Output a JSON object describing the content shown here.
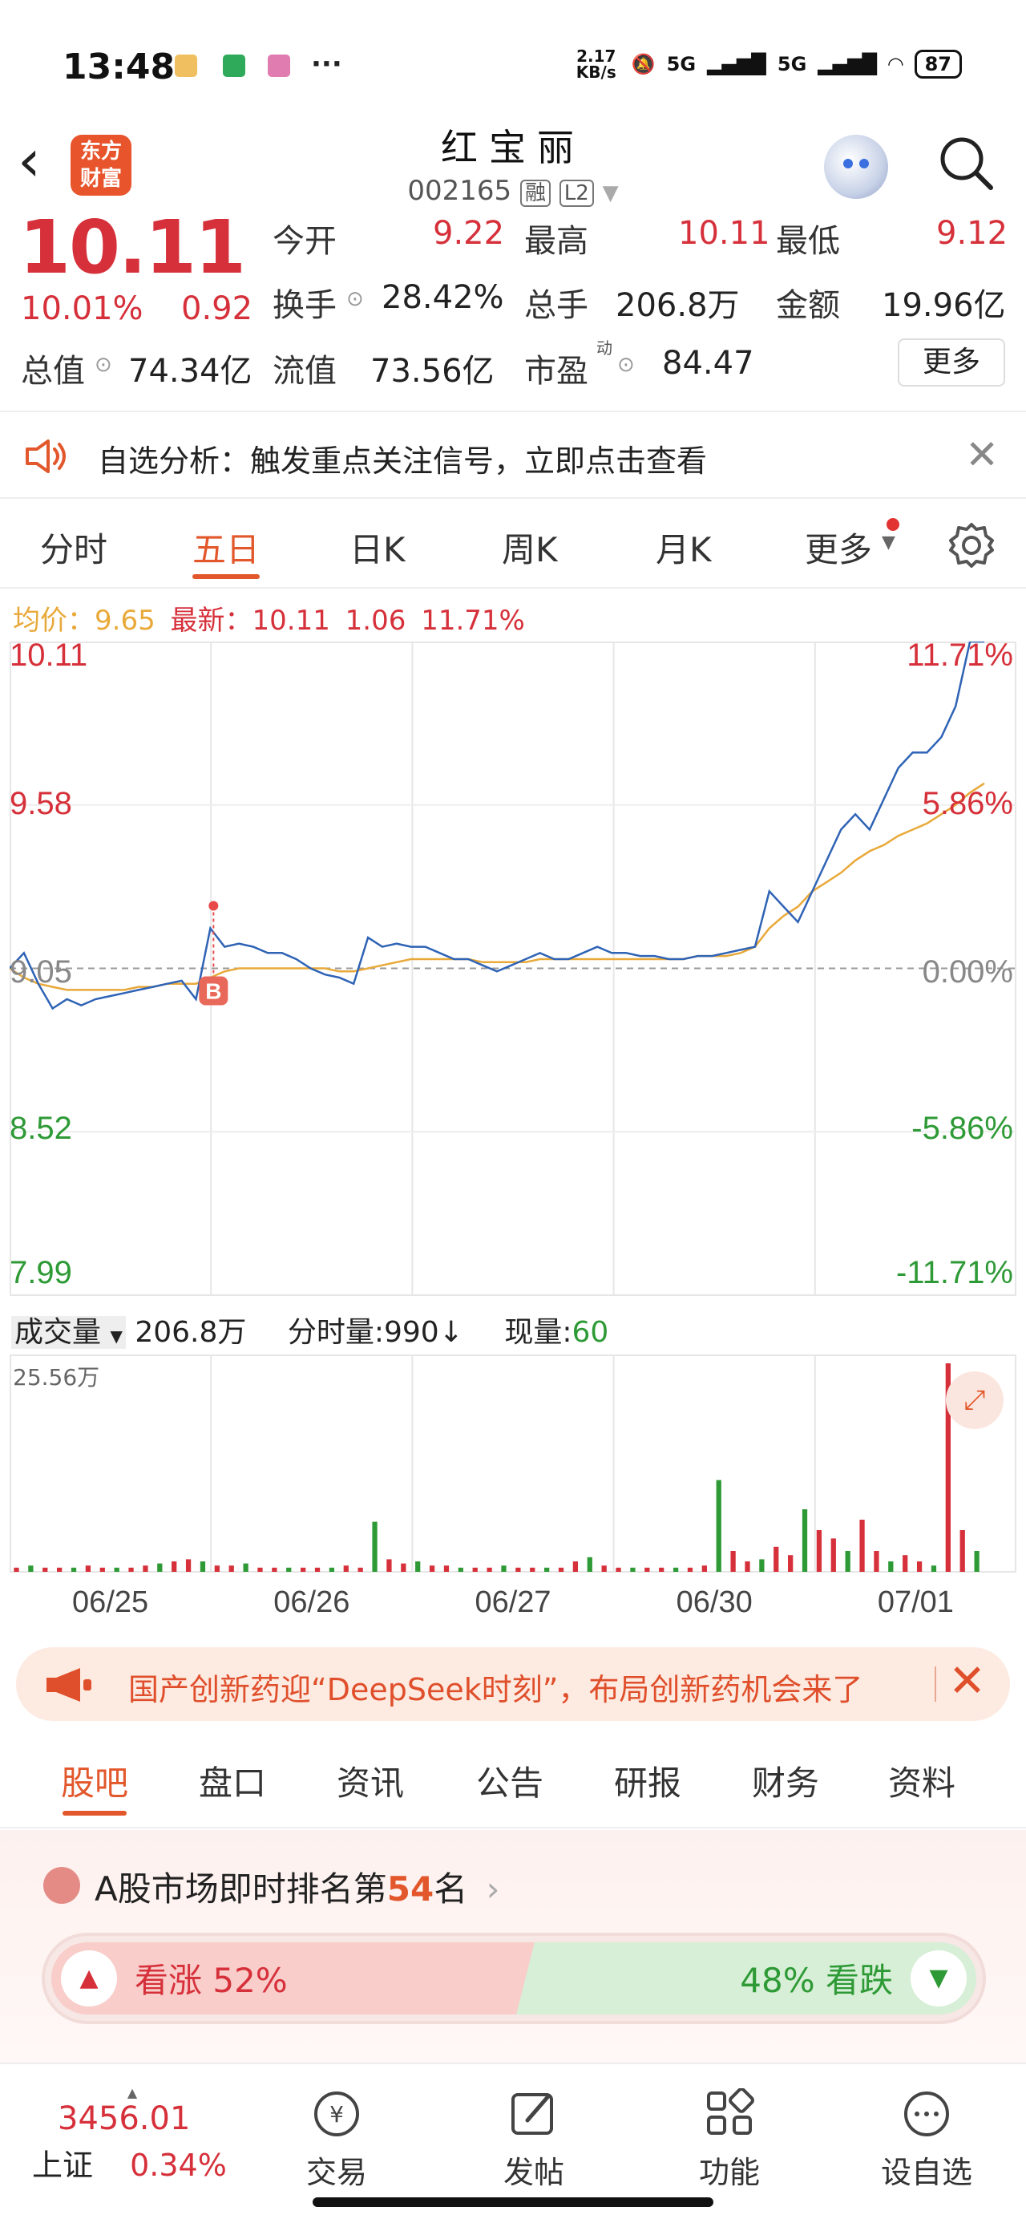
{
  "status_bar": {
    "time": "13:48",
    "more": "···",
    "speed": "2.17 KB/s",
    "net1": "5G",
    "net2": "5G",
    "battery": "87"
  },
  "nav": {
    "logo": "东方财富",
    "title": "红宝丽",
    "code": "002165",
    "tag_margin": "融",
    "tag_level": "L2"
  },
  "quote": {
    "price": "10.11",
    "pct": "10.01%",
    "change": "0.92",
    "open_label": "今开",
    "open": "9.22",
    "high_label": "最高",
    "high": "10.11",
    "low_label": "最低",
    "low": "9.12",
    "turnover_label": "换手",
    "turnover": "28.42%",
    "volume_label": "总手",
    "volume": "206.8万",
    "amount_label": "金额",
    "amount": "19.96亿",
    "mktcap_label": "总值",
    "mktcap": "74.34亿",
    "float_label": "流值",
    "float": "73.56亿",
    "pe_label": "市盈",
    "pe_sup": "动",
    "pe": "84.47",
    "more": "更多"
  },
  "alert": {
    "text": "自选分析：触发重点关注信号，立即点击查看"
  },
  "tabs": [
    "分时",
    "五日",
    "日K",
    "周K",
    "月K",
    "更多"
  ],
  "active_tab": "五日",
  "legend": {
    "avg_label": "均价：",
    "avg": "9.65",
    "latest_label": "最新：",
    "latest": "10.11",
    "chg": "1.06",
    "chg_pct": "11.71%"
  },
  "chart_data": {
    "type": "line",
    "y_left": [
      "10.11",
      "9.58",
      "9.05",
      "8.52",
      "7.99"
    ],
    "y_right": [
      "11.71%",
      "5.86%",
      "0.00%",
      "-5.86%",
      "-11.71%"
    ],
    "ylim": [
      7.99,
      10.11
    ],
    "base": 9.05,
    "days": [
      "06/25",
      "06/26",
      "06/27",
      "06/30",
      "07/01"
    ],
    "marker": "B",
    "series": [
      {
        "values": [
          9.05,
          9.1,
          9.0,
          8.92,
          8.95,
          8.93,
          8.95,
          8.96,
          8.97,
          8.98,
          8.99,
          9.0,
          9.01,
          8.95,
          9.18,
          9.12,
          9.13,
          9.12,
          9.1,
          9.1,
          9.08,
          9.05,
          9.03,
          9.02,
          9.0,
          9.15,
          9.12,
          9.13,
          9.12,
          9.12,
          9.1,
          9.08,
          9.08,
          9.06,
          9.04,
          9.06,
          9.08,
          9.1,
          9.08,
          9.08,
          9.1,
          9.12,
          9.1,
          9.1,
          9.09,
          9.09,
          9.08,
          9.08,
          9.09,
          9.09,
          9.1,
          9.11,
          9.12,
          9.3,
          9.25,
          9.2,
          9.3,
          9.4,
          9.5,
          9.55,
          9.5,
          9.6,
          9.7,
          9.75,
          9.75,
          9.8,
          9.9,
          10.11,
          10.11
        ]
      },
      {
        "values": [
          9.05,
          9.02,
          9.0,
          8.99,
          8.98,
          8.98,
          8.98,
          8.98,
          8.98,
          8.99,
          8.99,
          9.0,
          9.0,
          9.0,
          9.02,
          9.04,
          9.05,
          9.05,
          9.05,
          9.05,
          9.05,
          9.05,
          9.05,
          9.04,
          9.04,
          9.05,
          9.06,
          9.07,
          9.08,
          9.08,
          9.08,
          9.08,
          9.08,
          9.07,
          9.07,
          9.07,
          9.07,
          9.08,
          9.08,
          9.08,
          9.08,
          9.08,
          9.08,
          9.08,
          9.08,
          9.08,
          9.08,
          9.08,
          9.09,
          9.09,
          9.09,
          9.1,
          9.12,
          9.18,
          9.22,
          9.25,
          9.3,
          9.33,
          9.36,
          9.4,
          9.43,
          9.45,
          9.48,
          9.5,
          9.52,
          9.55,
          9.58,
          9.62,
          9.65
        ]
      }
    ]
  },
  "volume": {
    "label": "成交量",
    "total": "206.8万",
    "per_label": "分时量:",
    "per": "990",
    "arrow": "↓",
    "now_label": "现量:",
    "now": "60",
    "max": "25.56万",
    "bars": [
      0.02,
      0.03,
      0.02,
      0.02,
      0.02,
      0.03,
      0.02,
      0.02,
      0.02,
      0.03,
      0.04,
      0.05,
      0.06,
      0.05,
      0.03,
      0.03,
      0.04,
      0.02,
      0.02,
      0.02,
      0.02,
      0.02,
      0.02,
      0.03,
      0.02,
      0.24,
      0.06,
      0.04,
      0.05,
      0.03,
      0.03,
      0.02,
      0.02,
      0.02,
      0.03,
      0.02,
      0.02,
      0.02,
      0.02,
      0.05,
      0.07,
      0.03,
      0.02,
      0.02,
      0.02,
      0.02,
      0.02,
      0.02,
      0.03,
      0.44,
      0.1,
      0.05,
      0.06,
      0.12,
      0.08,
      0.3,
      0.2,
      0.16,
      0.1,
      0.25,
      0.1,
      0.05,
      0.08,
      0.05,
      0.03,
      1.0,
      0.2,
      0.1
    ]
  },
  "ad": {
    "text": "国产创新药迎“DeepSeek时刻”，布局创新药机会来了"
  },
  "subtabs": [
    "股吧",
    "盘口",
    "资讯",
    "公告",
    "研报",
    "财务",
    "资料"
  ],
  "rank": {
    "prefix": "A股市场即时排名第",
    "rank": "54",
    "suffix": "名",
    "up_label": "看涨 52%",
    "down_label": "48% 看跌",
    "up_fraction": 0.52
  },
  "bottom_nav": {
    "index_value": "3456.01",
    "index_name": "上证",
    "index_pct": "0.34%",
    "items": [
      "交易",
      "发帖",
      "功能",
      "设自选"
    ]
  },
  "colors": {
    "up": "#d6303a",
    "down": "#2e9a36",
    "accent": "#e2572b",
    "avg_line": "#e8a93a",
    "price_line": "#2f63b5"
  }
}
